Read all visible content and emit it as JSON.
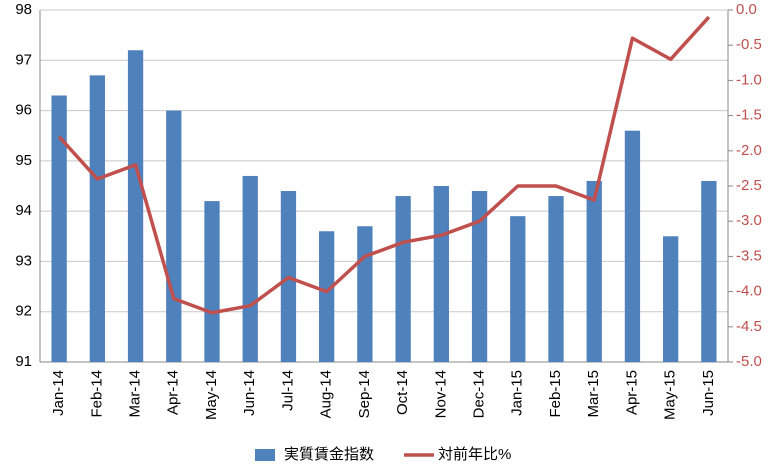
{
  "chart_data": {
    "type": "bar",
    "categories": [
      "Jan-14",
      "Feb-14",
      "Mar-14",
      "Apr-14",
      "May-14",
      "Jun-14",
      "Jul-14",
      "Aug-14",
      "Sep-14",
      "Oct-14",
      "Nov-14",
      "Dec-14",
      "Jan-15",
      "Feb-15",
      "Mar-15",
      "Apr-15",
      "May-15",
      "Jun-15"
    ],
    "series": [
      {
        "name": "実質賃金指数",
        "type": "bar",
        "color": "#4f81bd",
        "values": [
          96.3,
          96.7,
          97.2,
          96.0,
          94.2,
          94.7,
          94.4,
          93.6,
          93.7,
          94.3,
          94.5,
          94.4,
          93.9,
          94.3,
          94.6,
          95.6,
          93.5,
          94.6
        ]
      },
      {
        "name": "対前年比%",
        "type": "line",
        "axis": "y2",
        "color": "#c0504d",
        "values": [
          -1.8,
          -2.4,
          -2.2,
          -4.1,
          -4.3,
          -4.2,
          -3.8,
          -4.0,
          -3.5,
          -3.3,
          -3.2,
          -3.0,
          -2.5,
          -2.5,
          -2.7,
          -0.4,
          -0.7,
          -0.1
        ]
      }
    ],
    "ylim": [
      91,
      98
    ],
    "yticks": [
      91,
      92,
      93,
      94,
      95,
      96,
      97,
      98
    ],
    "y2lim": [
      -5,
      0
    ],
    "y2ticks": [
      {
        "value": -5,
        "label": "-5.0"
      },
      -4.5,
      {
        "value": -4,
        "label": "-4.0"
      },
      -3.5,
      {
        "value": -3,
        "label": "-3.0"
      },
      -2.5,
      {
        "value": -2,
        "label": "-2.0"
      },
      -1.5,
      {
        "value": -1,
        "label": "-1.0"
      },
      -0.5,
      {
        "value": 0,
        "label": "0.0"
      }
    ],
    "grid": true,
    "legend": "bottom"
  }
}
